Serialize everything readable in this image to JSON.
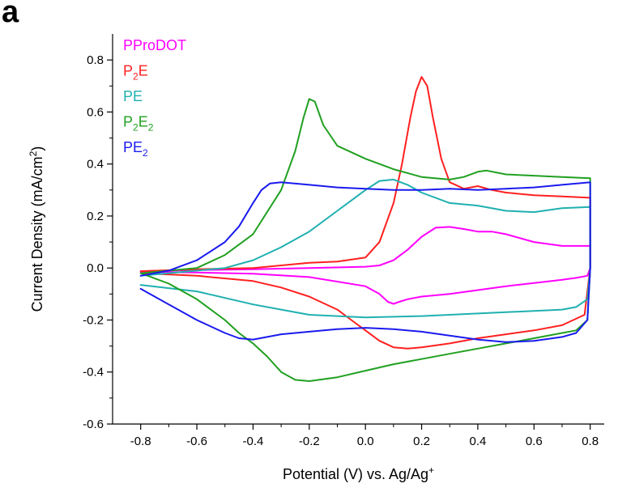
{
  "panel_label": "a",
  "chart_data": {
    "type": "line",
    "title": "",
    "xlabel": "Potential (V) vs. Ag/Ag",
    "xlabel_sup": "+",
    "ylabel": "Current Density (mA/cm",
    "ylabel_sup": "2",
    "ylabel_end": ")",
    "xlim": [
      -0.9,
      0.85
    ],
    "ylim": [
      -0.6,
      0.9
    ],
    "xticks": [
      -0.8,
      -0.6,
      -0.4,
      -0.2,
      0.0,
      0.2,
      0.4,
      0.6,
      0.8
    ],
    "xtick_labels": [
      "-0.8",
      "-0.6",
      "-0.4",
      "-0.2",
      "0.0",
      "0.2",
      "0.4",
      "0.6",
      "0.8"
    ],
    "yticks": [
      -0.6,
      -0.4,
      -0.2,
      0.0,
      0.2,
      0.4,
      0.6,
      0.8
    ],
    "ytick_labels": [
      "-0.6",
      "-0.4",
      "-0.2",
      "0.0",
      "0.2",
      "0.4",
      "0.6",
      "0.8"
    ],
    "grid": false,
    "legend_position": "top-left",
    "series": [
      {
        "key": "pprodot",
        "name": "PProDOT",
        "name_base": "PProDOT",
        "name_sub": "",
        "name_tail": "",
        "color": "#ff00ff",
        "x": [
          -0.8,
          -0.6,
          -0.4,
          -0.2,
          0.0,
          0.05,
          0.1,
          0.15,
          0.2,
          0.25,
          0.3,
          0.35,
          0.4,
          0.45,
          0.5,
          0.6,
          0.7,
          0.8,
          0.8,
          0.79,
          0.75,
          0.7,
          0.6,
          0.5,
          0.4,
          0.3,
          0.2,
          0.15,
          0.12,
          0.1,
          0.08,
          0.05,
          0.0,
          -0.2,
          -0.4,
          -0.6,
          -0.8
        ],
        "y": [
          -0.012,
          -0.008,
          -0.005,
          0.0,
          0.005,
          0.01,
          0.03,
          0.07,
          0.12,
          0.155,
          0.158,
          0.15,
          0.14,
          0.14,
          0.13,
          0.1,
          0.085,
          0.085,
          0.0,
          -0.03,
          -0.038,
          -0.045,
          -0.058,
          -0.07,
          -0.085,
          -0.1,
          -0.11,
          -0.12,
          -0.13,
          -0.138,
          -0.13,
          -0.1,
          -0.07,
          -0.035,
          -0.022,
          -0.017,
          -0.015
        ]
      },
      {
        "key": "p2e",
        "name": "P2E",
        "name_base": "P",
        "name_sub": "2",
        "name_tail": "E",
        "color": "#ff2020",
        "x": [
          -0.8,
          -0.6,
          -0.4,
          -0.3,
          -0.2,
          -0.1,
          0.0,
          0.05,
          0.1,
          0.13,
          0.16,
          0.18,
          0.2,
          0.22,
          0.24,
          0.27,
          0.3,
          0.35,
          0.4,
          0.45,
          0.5,
          0.6,
          0.7,
          0.8,
          0.8,
          0.78,
          0.7,
          0.6,
          0.5,
          0.4,
          0.3,
          0.2,
          0.15,
          0.1,
          0.05,
          0.0,
          -0.05,
          -0.1,
          -0.2,
          -0.3,
          -0.4,
          -0.6,
          -0.8
        ],
        "y": [
          -0.012,
          -0.005,
          0.0,
          0.01,
          0.02,
          0.025,
          0.04,
          0.1,
          0.25,
          0.4,
          0.58,
          0.68,
          0.735,
          0.7,
          0.58,
          0.42,
          0.33,
          0.305,
          0.315,
          0.3,
          0.29,
          0.28,
          0.275,
          0.27,
          0.0,
          -0.18,
          -0.22,
          -0.24,
          -0.255,
          -0.27,
          -0.29,
          -0.305,
          -0.31,
          -0.305,
          -0.28,
          -0.24,
          -0.2,
          -0.16,
          -0.11,
          -0.075,
          -0.05,
          -0.03,
          -0.02
        ]
      },
      {
        "key": "pe",
        "name": "PE",
        "name_base": "PE",
        "name_sub": "",
        "name_tail": "",
        "color": "#20b0b0",
        "x": [
          -0.8,
          -0.7,
          -0.6,
          -0.5,
          -0.4,
          -0.3,
          -0.2,
          -0.1,
          0.0,
          0.05,
          0.1,
          0.15,
          0.2,
          0.3,
          0.4,
          0.5,
          0.6,
          0.7,
          0.8,
          0.8,
          0.79,
          0.75,
          0.7,
          0.6,
          0.4,
          0.2,
          0.0,
          -0.2,
          -0.4,
          -0.6,
          -0.8
        ],
        "y": [
          -0.03,
          -0.02,
          -0.01,
          0.0,
          0.03,
          0.08,
          0.14,
          0.22,
          0.3,
          0.335,
          0.34,
          0.32,
          0.29,
          0.25,
          0.24,
          0.22,
          0.215,
          0.23,
          0.235,
          0.0,
          -0.12,
          -0.15,
          -0.16,
          -0.165,
          -0.175,
          -0.185,
          -0.19,
          -0.18,
          -0.14,
          -0.09,
          -0.065
        ]
      },
      {
        "key": "p2e2",
        "name": "P2E2",
        "name_base": "P",
        "name_sub": "2",
        "name_tail": "E",
        "name_sub2": "2",
        "color": "#20a020",
        "x": [
          -0.8,
          -0.6,
          -0.5,
          -0.4,
          -0.3,
          -0.25,
          -0.22,
          -0.2,
          -0.18,
          -0.15,
          -0.1,
          0.0,
          0.1,
          0.2,
          0.3,
          0.35,
          0.4,
          0.43,
          0.5,
          0.6,
          0.7,
          0.8,
          0.8,
          0.79,
          0.75,
          0.7,
          0.6,
          0.5,
          0.4,
          0.3,
          0.2,
          0.1,
          0.0,
          -0.1,
          -0.2,
          -0.25,
          -0.3,
          -0.35,
          -0.4,
          -0.45,
          -0.5,
          -0.6,
          -0.7,
          -0.8
        ],
        "y": [
          -0.02,
          0.0,
          0.05,
          0.13,
          0.3,
          0.45,
          0.58,
          0.65,
          0.64,
          0.55,
          0.47,
          0.42,
          0.38,
          0.35,
          0.34,
          0.35,
          0.37,
          0.375,
          0.36,
          0.355,
          0.35,
          0.345,
          0.0,
          -0.2,
          -0.24,
          -0.25,
          -0.27,
          -0.29,
          -0.31,
          -0.33,
          -0.35,
          -0.37,
          -0.395,
          -0.42,
          -0.435,
          -0.43,
          -0.4,
          -0.34,
          -0.29,
          -0.25,
          -0.2,
          -0.12,
          -0.06,
          -0.02
        ]
      },
      {
        "key": "pe2",
        "name": "PE2",
        "name_base": "PE",
        "name_sub": "2",
        "name_tail": "",
        "color": "#1a1aee",
        "x": [
          -0.8,
          -0.7,
          -0.6,
          -0.5,
          -0.45,
          -0.4,
          -0.37,
          -0.34,
          -0.3,
          -0.2,
          -0.1,
          0.0,
          0.1,
          0.2,
          0.3,
          0.4,
          0.5,
          0.6,
          0.7,
          0.8,
          0.8,
          0.79,
          0.75,
          0.7,
          0.6,
          0.5,
          0.4,
          0.3,
          0.2,
          0.1,
          0.0,
          -0.1,
          -0.2,
          -0.3,
          -0.35,
          -0.4,
          -0.45,
          -0.5,
          -0.6,
          -0.7,
          -0.8
        ],
        "y": [
          -0.03,
          -0.01,
          0.03,
          0.1,
          0.16,
          0.25,
          0.3,
          0.325,
          0.33,
          0.32,
          0.31,
          0.305,
          0.3,
          0.3,
          0.305,
          0.3,
          0.305,
          0.31,
          0.32,
          0.33,
          0.0,
          -0.2,
          -0.25,
          -0.265,
          -0.28,
          -0.285,
          -0.275,
          -0.26,
          -0.245,
          -0.235,
          -0.23,
          -0.235,
          -0.245,
          -0.255,
          -0.265,
          -0.275,
          -0.27,
          -0.25,
          -0.2,
          -0.14,
          -0.08
        ]
      }
    ]
  }
}
